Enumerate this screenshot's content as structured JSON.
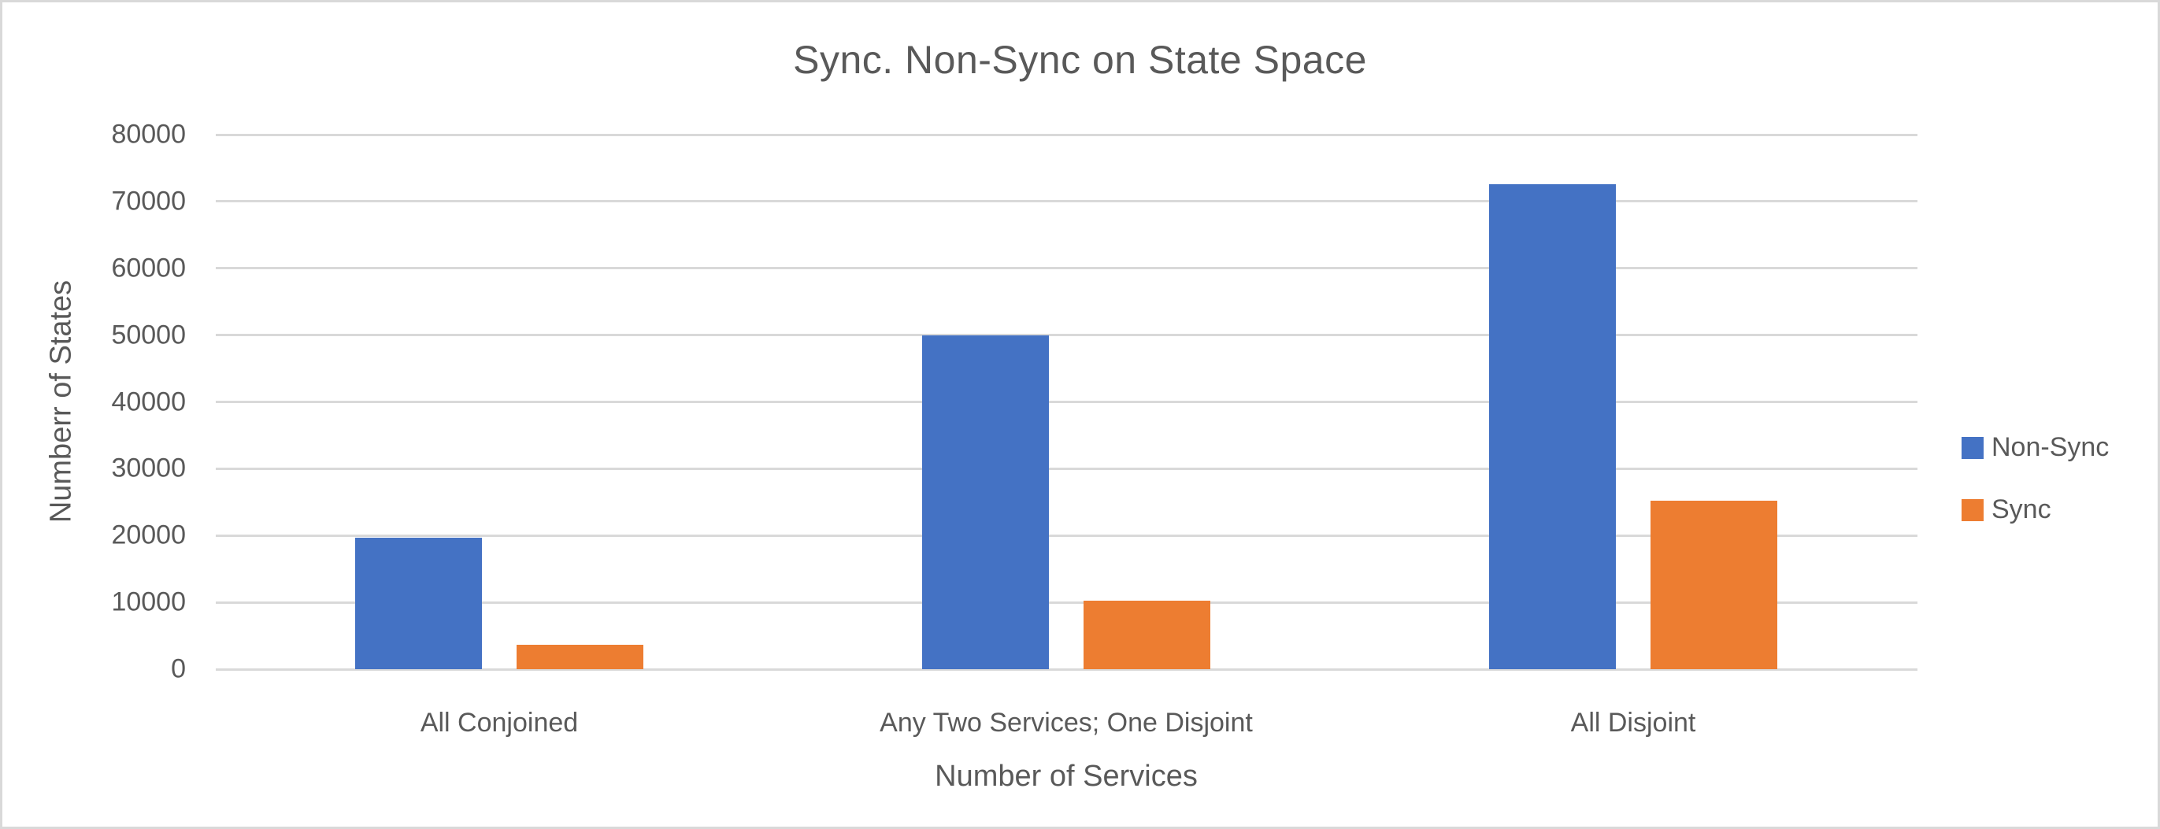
{
  "chart_data": {
    "type": "bar",
    "title": "Sync. Non-Sync on State Space",
    "xlabel": "Number of Services",
    "ylabel": "Numberr of States",
    "categories": [
      "All Conjoined",
      "Any Two Services; One Disjoint",
      "All Disjoint"
    ],
    "series": [
      {
        "name": "Non-Sync",
        "color": "#4472C4",
        "values": [
          19700,
          50000,
          72600
        ]
      },
      {
        "name": "Sync",
        "color": "#ED7D31",
        "values": [
          3700,
          10300,
          25200
        ]
      }
    ],
    "ylim": [
      0,
      80000
    ],
    "ytick_step": 10000,
    "ytick_labels": [
      "0",
      "10000",
      "20000",
      "30000",
      "40000",
      "50000",
      "60000",
      "70000",
      "80000"
    ],
    "grid": true,
    "legend_position": "right",
    "colors": {
      "text": "#595959",
      "gridline": "#D9D9D9",
      "border": "#D9D9D9",
      "background": "#FFFFFF"
    }
  }
}
